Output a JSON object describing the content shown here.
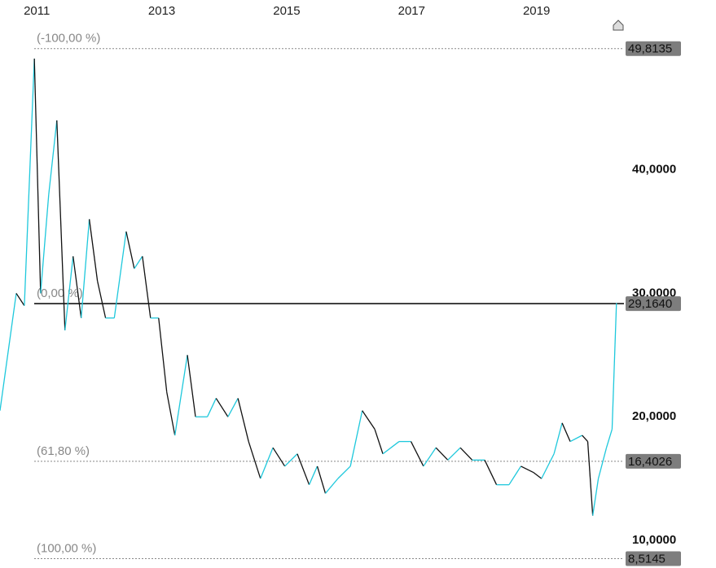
{
  "chart_data": {
    "type": "stock",
    "x": [
      2010.41,
      2010.67,
      2010.8,
      2010.96,
      2011.06,
      2011.19,
      2011.32,
      2011.45,
      2011.58,
      2011.71,
      2011.84,
      2011.97,
      2012.1,
      2012.24,
      2012.43,
      2012.56,
      2012.69,
      2012.82,
      2012.95,
      2013.08,
      2013.21,
      2013.41,
      2013.54,
      2013.73,
      2013.87,
      2014.06,
      2014.22,
      2014.39,
      2014.58,
      2014.78,
      2014.97,
      2015.17,
      2015.36,
      2015.49,
      2015.62,
      2015.82,
      2016.02,
      2016.21,
      2016.41,
      2016.54,
      2016.8,
      2016.99,
      2017.19,
      2017.39,
      2017.58,
      2017.78,
      2017.97,
      2018.17,
      2018.36,
      2018.56,
      2018.75,
      2018.95,
      2019.08,
      2019.28,
      2019.41,
      2019.54,
      2019.73,
      2019.82,
      2019.9,
      2019.99,
      2020.12,
      2020.21,
      2020.28
    ],
    "values": [
      20.5,
      30,
      29,
      49,
      30,
      38,
      44,
      27,
      33,
      28,
      36,
      31,
      28,
      28,
      35,
      32,
      33,
      28,
      28,
      22,
      18.5,
      25,
      20,
      20,
      21.5,
      20,
      21.5,
      18,
      15,
      17.5,
      16,
      17,
      14.5,
      16,
      13.8,
      15,
      16,
      20.5,
      19,
      17,
      18,
      18,
      16,
      17.5,
      16.5,
      17.5,
      16.5,
      16.5,
      14.5,
      14.5,
      16,
      15.5,
      15,
      17,
      19.5,
      18,
      18.5,
      18,
      12,
      15,
      17.5,
      19,
      29.2
    ],
    "up_color": "#1ec8dc",
    "down_color": "#111111",
    "xlim": [
      2010.41,
      2020.4
    ],
    "xticks": [
      2011,
      2013,
      2015,
      2017,
      2019
    ],
    "ylim": [
      7.76,
      52.1
    ],
    "yticks": [
      {
        "value": 10,
        "label": "10,0000"
      },
      {
        "value": 20,
        "label": "20,0000"
      },
      {
        "value": 30,
        "label": "30,0000"
      },
      {
        "value": 40,
        "label": "40,0000"
      }
    ],
    "levels": [
      {
        "value": 49.8135,
        "label": "49,8135",
        "fib_label": "(-100,00 %)",
        "style": "dotted"
      },
      {
        "value": 29.164,
        "label": "29,1640",
        "fib_label": "(0,00 %)",
        "style": "solid"
      },
      {
        "value": 16.4026,
        "label": "16,4026",
        "fib_label": "(61,80 %)",
        "style": "dotted"
      },
      {
        "value": 8.5145,
        "label": "8,5145",
        "fib_label": "(100,00 %)",
        "style": "dotted"
      }
    ]
  }
}
